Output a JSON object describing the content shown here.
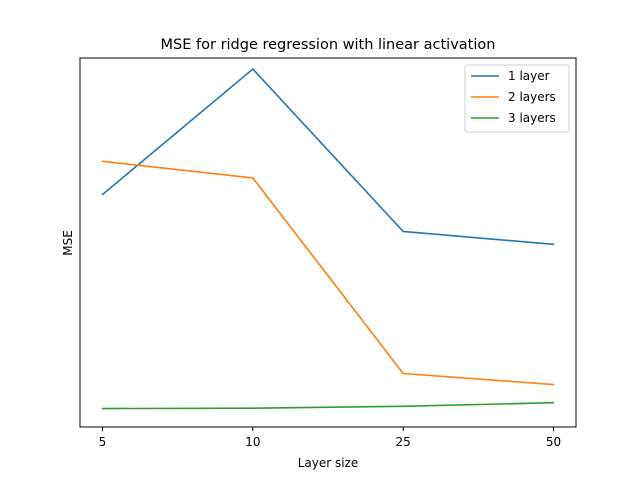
{
  "chart_data": {
    "type": "line",
    "title": "MSE for ridge regression with linear activation",
    "xlabel": "Layer size",
    "ylabel": "MSE",
    "categories": [
      "5",
      "10",
      "25",
      "50"
    ],
    "ylim": [
      0,
      1
    ],
    "grid": false,
    "legend_position": "top-right",
    "series": [
      {
        "name": "1 layer",
        "color": "#1f77b4",
        "values": [
          0.63,
          0.97,
          0.53,
          0.495
        ]
      },
      {
        "name": "2 layers",
        "color": "#ff7f0e",
        "values": [
          0.72,
          0.675,
          0.145,
          0.115
        ]
      },
      {
        "name": "3 layers",
        "color": "#2ca02c",
        "values": [
          0.05,
          0.051,
          0.056,
          0.066
        ]
      }
    ]
  }
}
